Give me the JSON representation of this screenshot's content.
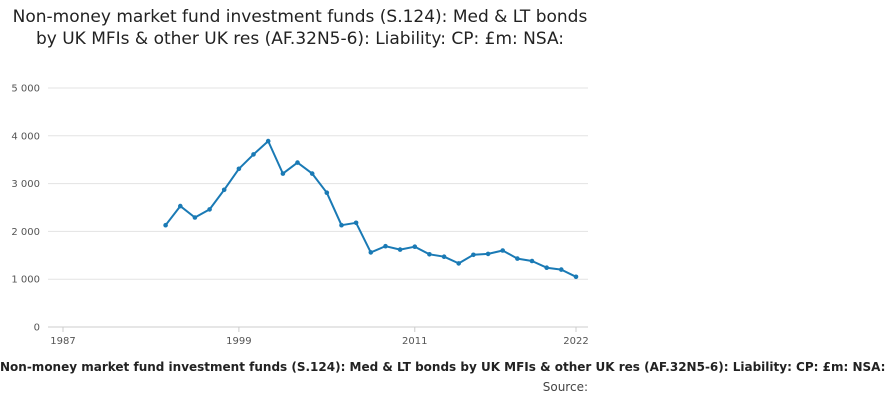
{
  "chart_data": {
    "type": "line",
    "title": "Non-money market fund investment funds (S.124): Med & LT bonds by UK MFIs & other UK res (AF.32N5-6): Liability: CP: £m: NSA:",
    "xlabel": "",
    "ylabel": "",
    "x_ticks": [
      "1987",
      "1999",
      "2011",
      "2022"
    ],
    "y_ticks": [
      "0",
      "1 000",
      "2 000",
      "3 000",
      "4 000",
      "5 000"
    ],
    "xlim": [
      1987,
      2022
    ],
    "ylim": [
      0,
      5000
    ],
    "grid": "horizontal",
    "legend": "none",
    "line_color": "#1a7ab5",
    "series": [
      {
        "x": [
          1994,
          1995,
          1996,
          1997,
          1998,
          1999,
          2000,
          2001,
          2002,
          2003,
          2004,
          2005,
          2006,
          2007,
          2008,
          2009,
          2010,
          2011,
          2012,
          2013,
          2014,
          2015,
          2016,
          2017,
          2018,
          2019,
          2020,
          2021,
          2022
        ],
        "values": [
          2130,
          2530,
          2290,
          2460,
          2870,
          3310,
          3610,
          3890,
          3210,
          3440,
          3210,
          2810,
          2130,
          2180,
          1560,
          1690,
          1620,
          1680,
          1520,
          1470,
          1330,
          1510,
          1530,
          1600,
          1430,
          1380,
          1240,
          1200,
          1050
        ]
      }
    ]
  },
  "footer": {
    "caption": "Non-money market fund investment funds (S.124): Med & LT bonds by UK MFIs & other UK res (AF.32N5-6): Liability: CP: £m: NSA:",
    "source": "Source:"
  }
}
